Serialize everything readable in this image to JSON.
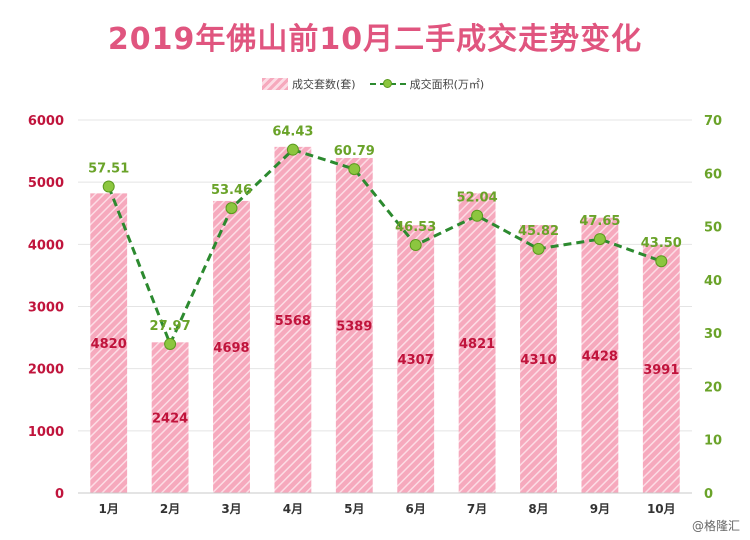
{
  "title": "2019年佛山前10月二手成交走势变化",
  "legend": {
    "bars": "成交套数(套)",
    "line": "成交面积(万㎡)"
  },
  "watermark": "@格隆汇",
  "colors": {
    "title": "#e0557f",
    "bar": "#f6a9bd",
    "bar_label": "#c0143c",
    "left_axis": "#c0143c",
    "right_axis": "#6aa329",
    "line": "#2c8a2f",
    "dot": "#8cc63f"
  },
  "chart_data": {
    "type": "bar",
    "categories": [
      "1月",
      "2月",
      "3月",
      "4月",
      "5月",
      "6月",
      "7月",
      "8月",
      "9月",
      "10月"
    ],
    "series": [
      {
        "name": "成交套数(套)",
        "type": "bar",
        "axis": "left",
        "values": [
          4820,
          2424,
          4698,
          5568,
          5389,
          4307,
          4821,
          4310,
          4428,
          3991
        ],
        "labels": [
          "4820",
          "2424",
          "4698",
          "5568",
          "5389",
          "4307",
          "4821",
          "4310",
          "4428",
          "3991"
        ]
      },
      {
        "name": "成交面积(万㎡)",
        "type": "line",
        "axis": "right",
        "values": [
          57.51,
          27.97,
          53.46,
          64.43,
          60.79,
          46.53,
          52.04,
          45.82,
          47.65,
          43.5
        ],
        "labels": [
          "57.51",
          "27.97",
          "53.46",
          "64.43",
          "60.79",
          "46.53",
          "52.04",
          "45.82",
          "47.65",
          "43.50"
        ]
      }
    ],
    "y_left": {
      "lim": [
        0,
        6000
      ],
      "ticks": [
        "0",
        "1000",
        "2000",
        "3000",
        "4000",
        "5000",
        "6000"
      ]
    },
    "y_right": {
      "lim": [
        0,
        70
      ],
      "ticks": [
        "0",
        "10",
        "20",
        "30",
        "40",
        "50",
        "60",
        "70"
      ]
    },
    "grid": true,
    "legend_position": "top-center"
  }
}
